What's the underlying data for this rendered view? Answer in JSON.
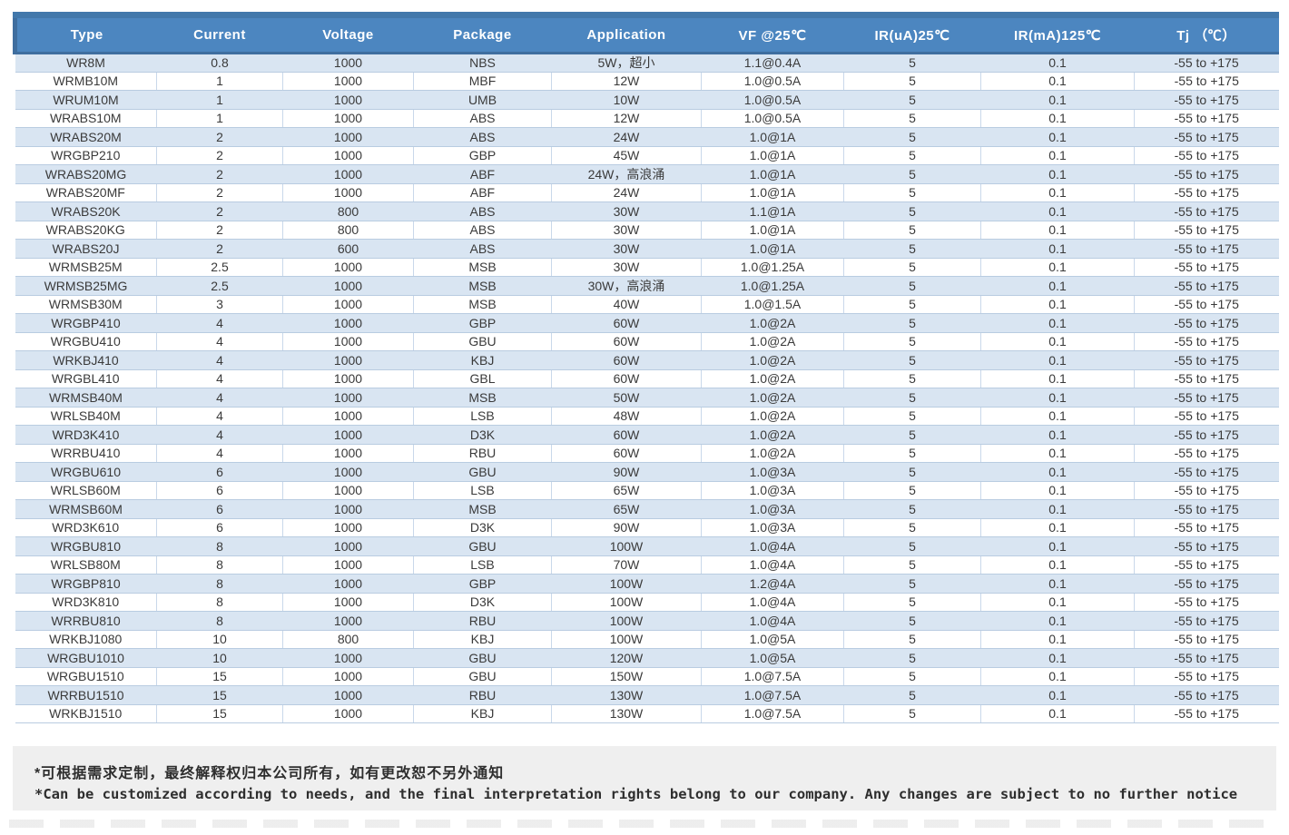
{
  "table": {
    "columns": [
      {
        "key": "type",
        "label": "Type"
      },
      {
        "key": "current",
        "label": "Current"
      },
      {
        "key": "voltage",
        "label": "Voltage"
      },
      {
        "key": "package",
        "label": "Package"
      },
      {
        "key": "application",
        "label": "Application"
      },
      {
        "key": "vf",
        "label": "VF @25℃"
      },
      {
        "key": "ir-ua",
        "label": "IR(uA)25℃"
      },
      {
        "key": "ir-ma",
        "label": "IR(mA)125℃"
      },
      {
        "key": "tj",
        "label": "Tj （℃）"
      }
    ],
    "rows": [
      [
        "WR8M",
        "0.8",
        "1000",
        "NBS",
        "5W，超小",
        "1.1@0.4A",
        "5",
        "0.1",
        "-55 to +175"
      ],
      [
        "WRMB10M",
        "1",
        "1000",
        "MBF",
        "12W",
        "1.0@0.5A",
        "5",
        "0.1",
        "-55 to +175"
      ],
      [
        "WRUM10M",
        "1",
        "1000",
        "UMB",
        "10W",
        "1.0@0.5A",
        "5",
        "0.1",
        "-55 to +175"
      ],
      [
        "WRABS10M",
        "1",
        "1000",
        "ABS",
        "12W",
        "1.0@0.5A",
        "5",
        "0.1",
        "-55 to +175"
      ],
      [
        "WRABS20M",
        "2",
        "1000",
        "ABS",
        "24W",
        "1.0@1A",
        "5",
        "0.1",
        "-55 to +175"
      ],
      [
        "WRGBP210",
        "2",
        "1000",
        "GBP",
        "45W",
        "1.0@1A",
        "5",
        "0.1",
        "-55 to +175"
      ],
      [
        "WRABS20MG",
        "2",
        "1000",
        "ABF",
        "24W，高浪涌",
        "1.0@1A",
        "5",
        "0.1",
        "-55 to +175"
      ],
      [
        "WRABS20MF",
        "2",
        "1000",
        "ABF",
        "24W",
        "1.0@1A",
        "5",
        "0.1",
        "-55 to +175"
      ],
      [
        "WRABS20K",
        "2",
        "800",
        "ABS",
        "30W",
        "1.1@1A",
        "5",
        "0.1",
        "-55 to +175"
      ],
      [
        "WRABS20KG",
        "2",
        "800",
        "ABS",
        "30W",
        "1.0@1A",
        "5",
        "0.1",
        "-55 to +175"
      ],
      [
        "WRABS20J",
        "2",
        "600",
        "ABS",
        "30W",
        "1.0@1A",
        "5",
        "0.1",
        "-55 to +175"
      ],
      [
        "WRMSB25M",
        "2.5",
        "1000",
        "MSB",
        "30W",
        "1.0@1.25A",
        "5",
        "0.1",
        "-55 to +175"
      ],
      [
        "WRMSB25MG",
        "2.5",
        "1000",
        "MSB",
        "30W，高浪涌",
        "1.0@1.25A",
        "5",
        "0.1",
        "-55 to +175"
      ],
      [
        "WRMSB30M",
        "3",
        "1000",
        "MSB",
        "40W",
        "1.0@1.5A",
        "5",
        "0.1",
        "-55 to +175"
      ],
      [
        "WRGBP410",
        "4",
        "1000",
        "GBP",
        "60W",
        "1.0@2A",
        "5",
        "0.1",
        "-55 to +175"
      ],
      [
        "WRGBU410",
        "4",
        "1000",
        "GBU",
        "60W",
        "1.0@2A",
        "5",
        "0.1",
        "-55 to +175"
      ],
      [
        "WRKBJ410",
        "4",
        "1000",
        "KBJ",
        "60W",
        "1.0@2A",
        "5",
        "0.1",
        "-55 to +175"
      ],
      [
        "WRGBL410",
        "4",
        "1000",
        "GBL",
        "60W",
        "1.0@2A",
        "5",
        "0.1",
        "-55 to +175"
      ],
      [
        "WRMSB40M",
        "4",
        "1000",
        "MSB",
        "50W",
        "1.0@2A",
        "5",
        "0.1",
        "-55 to +175"
      ],
      [
        "WRLSB40M",
        "4",
        "1000",
        "LSB",
        "48W",
        "1.0@2A",
        "5",
        "0.1",
        "-55 to +175"
      ],
      [
        "WRD3K410",
        "4",
        "1000",
        "D3K",
        "60W",
        "1.0@2A",
        "5",
        "0.1",
        "-55 to +175"
      ],
      [
        "WRRBU410",
        "4",
        "1000",
        "RBU",
        "60W",
        "1.0@2A",
        "5",
        "0.1",
        "-55 to +175"
      ],
      [
        "WRGBU610",
        "6",
        "1000",
        "GBU",
        "90W",
        "1.0@3A",
        "5",
        "0.1",
        "-55 to +175"
      ],
      [
        "WRLSB60M",
        "6",
        "1000",
        "LSB",
        "65W",
        "1.0@3A",
        "5",
        "0.1",
        "-55 to +175"
      ],
      [
        "WRMSB60M",
        "6",
        "1000",
        "MSB",
        "65W",
        "1.0@3A",
        "5",
        "0.1",
        "-55 to +175"
      ],
      [
        "WRD3K610",
        "6",
        "1000",
        "D3K",
        "90W",
        "1.0@3A",
        "5",
        "0.1",
        "-55 to +175"
      ],
      [
        "WRGBU810",
        "8",
        "1000",
        "GBU",
        "100W",
        "1.0@4A",
        "5",
        "0.1",
        "-55 to +175"
      ],
      [
        "WRLSB80M",
        "8",
        "1000",
        "LSB",
        "70W",
        "1.0@4A",
        "5",
        "0.1",
        "-55 to +175"
      ],
      [
        "WRGBP810",
        "8",
        "1000",
        "GBP",
        "100W",
        "1.2@4A",
        "5",
        "0.1",
        "-55 to +175"
      ],
      [
        "WRD3K810",
        "8",
        "1000",
        "D3K",
        "100W",
        "1.0@4A",
        "5",
        "0.1",
        "-55 to +175"
      ],
      [
        "WRRBU810",
        "8",
        "1000",
        "RBU",
        "100W",
        "1.0@4A",
        "5",
        "0.1",
        "-55 to +175"
      ],
      [
        "WRKBJ1080",
        "10",
        "800",
        "KBJ",
        "100W",
        "1.0@5A",
        "5",
        "0.1",
        "-55 to +175"
      ],
      [
        "WRGBU1010",
        "10",
        "1000",
        "GBU",
        "120W",
        "1.0@5A",
        "5",
        "0.1",
        "-55 to +175"
      ],
      [
        "WRGBU1510",
        "15",
        "1000",
        "GBU",
        "150W",
        "1.0@7.5A",
        "5",
        "0.1",
        "-55 to +175"
      ],
      [
        "WRRBU1510",
        "15",
        "1000",
        "RBU",
        "130W",
        "1.0@7.5A",
        "5",
        "0.1",
        "-55 to +175"
      ],
      [
        "WRKBJ1510",
        "15",
        "1000",
        "KBJ",
        "130W",
        "1.0@7.5A",
        "5",
        "0.1",
        "-55 to +175"
      ]
    ]
  },
  "footer": {
    "note_cn": "*可根据需求定制，最终解释权归本公司所有，如有更改恕不另外通知",
    "note_en": "*Can be customized according to needs, and the final interpretation rights belong to our company. Any changes are subject to no further notice"
  },
  "colors": {
    "header_bg": "#4c86c0",
    "header_top_strip": "#4278ab",
    "header_border": "#3f6e9f",
    "row_alt_bg": "#d9e5f2",
    "row_border": "#b9cce1",
    "cell_divider": "#c9d8ea",
    "text": "#3a3a3a",
    "footer_bg": "#efefef"
  }
}
